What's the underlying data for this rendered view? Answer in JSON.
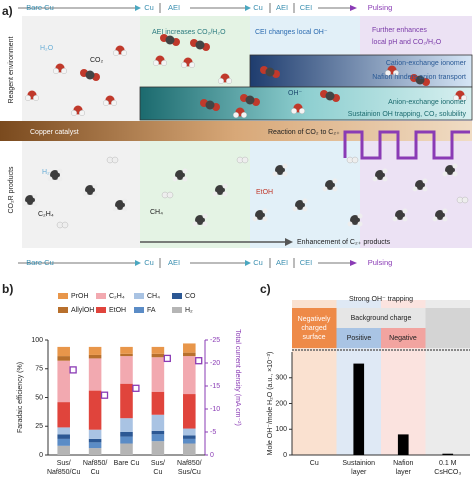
{
  "panel_a": {
    "label": "a)",
    "top_steps": [
      "Bare Cu",
      "Cu",
      "AEI",
      "Cu",
      "AEI",
      "CEI",
      "Pulsing"
    ],
    "bottom_steps": [
      "Bare Cu",
      "Cu",
      "AEI",
      "Cu",
      "AEI",
      "CEI",
      "Pulsing"
    ],
    "row_labels": [
      "Reagent environment",
      "CO₂R products"
    ],
    "h2o": "H₂O",
    "co2": "CO₂",
    "aei_note": "AEI increases CO₂/H₂O",
    "cei_note": "CEI changes local OH⁻",
    "pulse_note": [
      "Further enhances",
      "local pH and CO₂/H₂O"
    ],
    "cation_layer": [
      "Cation-exchange ionomer",
      "Nafion hinders anion transport"
    ],
    "oh": "OH⁻",
    "anion_layer": [
      "Anion-exchange ionomer",
      "Sustainion OH trapping, CO₂ solubility"
    ],
    "catalyst": "Copper catalyst",
    "reaction": "Reaction of CO₂ to C₂₊",
    "products": [
      "H₂",
      "C₂H₄",
      "CH₄",
      "EtOH"
    ],
    "enhancement": "Enhancement of C₂₊ products"
  },
  "panel_c_header": {
    "label": "c)",
    "title": "Strong OH⁻ trapping",
    "surface": "Negatively charged surface",
    "background": "Background charge",
    "positive": "Positive",
    "negative": "Negative"
  },
  "chart_data": [
    {
      "type": "stacked-bar",
      "label": "b)",
      "categories": [
        "Sus/Naf850/Cu",
        "Naf850/Cu",
        "Bare Cu",
        "Sus/Cu",
        "Naf850/Sus/Cu"
      ],
      "series": [
        {
          "name": "PrOH",
          "color": "#e8964a",
          "values": [
            8,
            7,
            6,
            6,
            8
          ]
        },
        {
          "name": "C₂H₄",
          "color": "#f2a9b0",
          "values": [
            36,
            28,
            24,
            30,
            33
          ]
        },
        {
          "name": "CH₄",
          "color": "#a9c3e3",
          "values": [
            6,
            8,
            12,
            14,
            6
          ]
        },
        {
          "name": "CO",
          "color": "#2c5894",
          "values": [
            4,
            3,
            4,
            3,
            3
          ]
        },
        {
          "name": "AllylOH",
          "color": "#b8702c",
          "values": [
            4,
            3,
            2,
            3,
            3
          ]
        },
        {
          "name": "EtOH",
          "color": "#e0443c",
          "values": [
            22,
            34,
            30,
            20,
            30
          ]
        },
        {
          "name": "FA",
          "color": "#5b8cc6",
          "values": [
            6,
            5,
            6,
            6,
            4
          ]
        },
        {
          "name": "H₂",
          "color": "#b5b5b5",
          "values": [
            8,
            6,
            10,
            12,
            10
          ]
        },
        {
          "axis": "y2",
          "color": "#8a3bb5",
          "values": [
            -18.5,
            -13,
            -14.5,
            -21,
            -20.5
          ]
        }
      ],
      "ylabel": "Faradaic efficiency (%)",
      "ylim": [
        0,
        100
      ],
      "yticks": [
        0,
        25,
        50,
        75,
        100
      ],
      "y2label": "Total current density (mA cm⁻²)",
      "y2lim": [
        0,
        -25
      ],
      "y2ticks": [
        0,
        -5,
        -10,
        -15,
        -20,
        -25
      ]
    },
    {
      "type": "bar",
      "categories": [
        "Cu",
        "Sustainion layer",
        "Nafion layer",
        "0.1 M CsHCO₃"
      ],
      "values": [
        0,
        355,
        80,
        5
      ],
      "color": "#000000",
      "ylabel": "Mole OH⁻/mole H₂O (a.u., ×10⁻³)",
      "ylim": [
        0,
        400
      ],
      "yticks": [
        0,
        100,
        200,
        300
      ]
    }
  ]
}
